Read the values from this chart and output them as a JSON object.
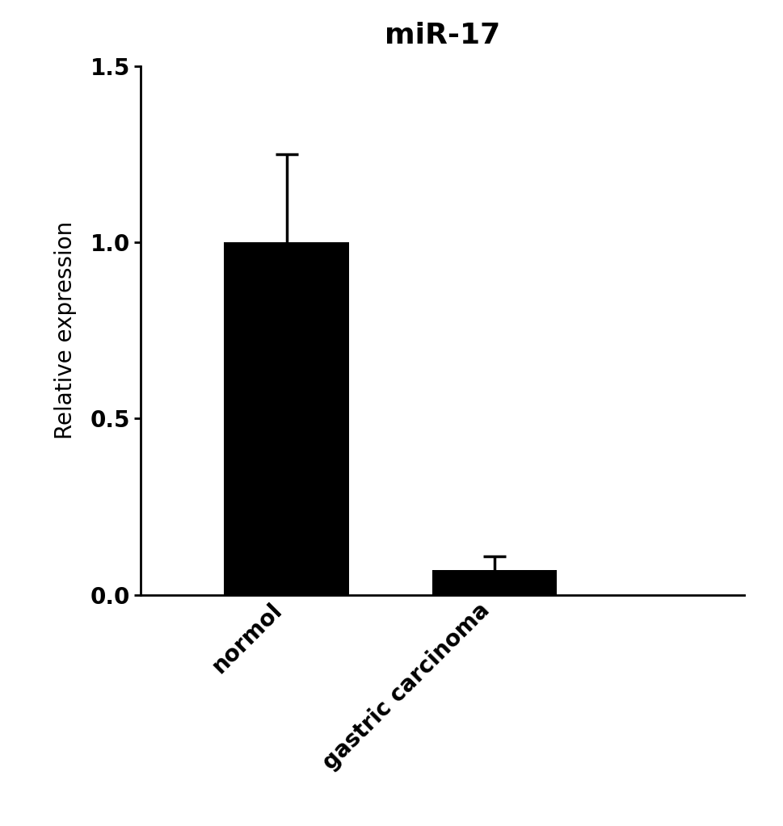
{
  "title": "miR-17",
  "title_fontsize": 26,
  "title_fontweight": "bold",
  "ylabel": "Relative expression",
  "ylabel_fontsize": 20,
  "categories": [
    "normol",
    "gastric carcinoma"
  ],
  "values": [
    1.0,
    0.07
  ],
  "errors": [
    0.25,
    0.04
  ],
  "bar_color": "#000000",
  "bar_width": 0.6,
  "ylim": [
    0,
    1.5
  ],
  "yticks": [
    0.0,
    0.5,
    1.0,
    1.5
  ],
  "tick_fontsize": 20,
  "background_color": "#ffffff",
  "capsize": 10,
  "error_linewidth": 2.5,
  "error_capthick": 2.5,
  "x_positions": [
    1,
    2
  ],
  "xlim": [
    0.3,
    3.2
  ]
}
